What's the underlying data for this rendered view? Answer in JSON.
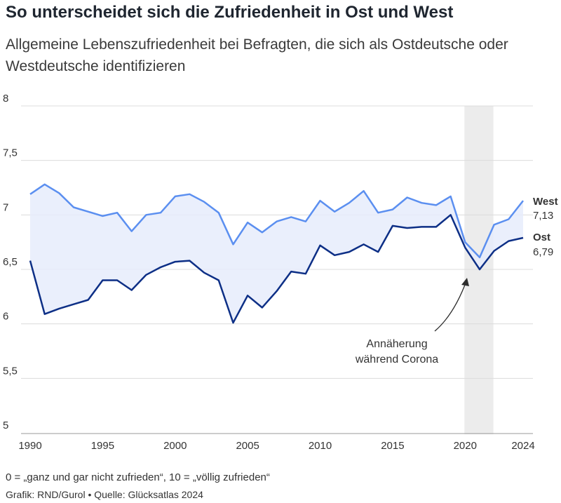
{
  "header": {
    "title": "So unterscheidet sich die Zufriedenheit in Ost und West",
    "subtitle": "Allgemeine Lebenszufriedenheit bei Befragten, die sich als Ostdeutsche oder Westdeutsche identifizieren"
  },
  "footer": {
    "note": "0 = „ganz und gar nicht zufrieden“, 10 = „völlig zufrieden“",
    "source": "Grafik: RND/Gurol • Quelle: Glücksatlas 2024"
  },
  "colors": {
    "west": "#5b8ff0",
    "ost": "#0d2f86",
    "band": "#e6ecfb",
    "highlight": "#ececec",
    "grid": "#dcdcdc"
  },
  "chart_data": {
    "type": "line",
    "x": [
      1990,
      1991,
      1992,
      1993,
      1994,
      1995,
      1996,
      1997,
      1998,
      1999,
      2000,
      2001,
      2002,
      2003,
      2004,
      2005,
      2006,
      2007,
      2008,
      2009,
      2010,
      2011,
      2012,
      2013,
      2014,
      2015,
      2016,
      2017,
      2018,
      2019,
      2020,
      2021,
      2022,
      2023,
      2024
    ],
    "series": [
      {
        "name": "West",
        "end_label": "7,13",
        "values": [
          7.19,
          7.28,
          7.2,
          7.07,
          7.03,
          6.99,
          7.02,
          6.85,
          7.0,
          7.02,
          7.17,
          7.19,
          7.12,
          7.02,
          6.73,
          6.93,
          6.84,
          6.94,
          6.98,
          6.94,
          7.13,
          7.03,
          7.11,
          7.22,
          7.02,
          7.05,
          7.16,
          7.11,
          7.09,
          7.17,
          6.75,
          6.61,
          6.91,
          6.96,
          7.13
        ]
      },
      {
        "name": "Ost",
        "end_label": "6,79",
        "values": [
          6.58,
          6.09,
          6.14,
          6.18,
          6.22,
          6.4,
          6.4,
          6.31,
          6.45,
          6.52,
          6.57,
          6.58,
          6.47,
          6.4,
          6.01,
          6.26,
          6.15,
          6.3,
          6.48,
          6.46,
          6.72,
          6.63,
          6.66,
          6.73,
          6.66,
          6.9,
          6.88,
          6.89,
          6.89,
          7.0,
          6.7,
          6.5,
          6.67,
          6.76,
          6.79
        ]
      }
    ],
    "x_ticks": [
      1990,
      1995,
      2000,
      2005,
      2010,
      2015,
      2020,
      2024
    ],
    "y_ticks": [
      {
        "value": 5,
        "label": "5"
      },
      {
        "value": 5.5,
        "label": "5,5"
      },
      {
        "value": 6,
        "label": "6"
      },
      {
        "value": 6.5,
        "label": "6,5"
      },
      {
        "value": 7,
        "label": "7"
      },
      {
        "value": 7.5,
        "label": "7,5"
      },
      {
        "value": 8,
        "label": "8"
      }
    ],
    "ylim": [
      5,
      8
    ],
    "xlim": [
      1990,
      2024
    ],
    "highlight_range": [
      2019.95,
      2021.95
    ],
    "annotation": {
      "lines": [
        "Annäherung",
        "während Corona"
      ]
    },
    "grid": true
  }
}
